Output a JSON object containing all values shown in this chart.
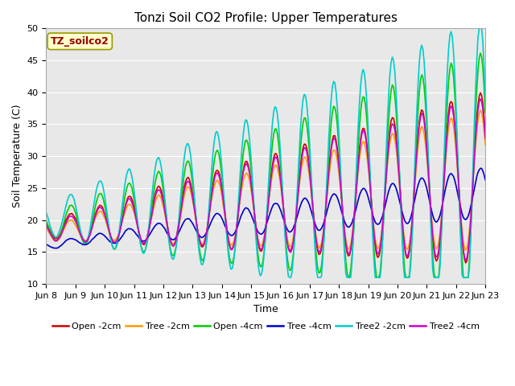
{
  "title": "Tonzi Soil CO2 Profile: Upper Temperatures",
  "xlabel": "Time",
  "ylabel": "Soil Temperature (C)",
  "ylim": [
    10,
    50
  ],
  "ytick_vals": [
    10,
    15,
    20,
    25,
    30,
    35,
    40,
    45,
    50
  ],
  "xtick_labels": [
    "Jun 8",
    "Jun 9",
    "Jun 10",
    "Jun 11",
    "Jun 12",
    "Jun 13",
    "Jun 14",
    "Jun 15",
    "Jun 16",
    "Jun 17",
    "Jun 18",
    "Jun 19",
    "Jun 20",
    "Jun 21",
    "Jun 22",
    "Jun 23"
  ],
  "annotation_text": "TZ_soilco2",
  "annotation_color": "#990000",
  "annotation_bg": "#ffffcc",
  "annotation_border": "#999900",
  "series": [
    {
      "label": "Open -2cm",
      "color": "#cc0000",
      "lw": 1.2,
      "ls": "-"
    },
    {
      "label": "Tree -2cm",
      "color": "#ff9900",
      "lw": 1.2,
      "ls": "-"
    },
    {
      "label": "Open -4cm",
      "color": "#00cc00",
      "lw": 1.2,
      "ls": "-"
    },
    {
      "label": "Tree -4cm",
      "color": "#0000cc",
      "lw": 1.2,
      "ls": "-"
    },
    {
      "label": "Tree2 -2cm",
      "color": "#00cccc",
      "lw": 1.2,
      "ls": "-"
    },
    {
      "label": "Tree2 -4cm",
      "color": "#cc00cc",
      "lw": 1.2,
      "ls": "-"
    }
  ],
  "plot_bg": "#e8e8e8",
  "fig_bg": "#ffffff",
  "grid_color": "#ffffff",
  "title_fontsize": 11,
  "axis_fontsize": 9,
  "tick_fontsize": 8,
  "legend_fontsize": 8
}
